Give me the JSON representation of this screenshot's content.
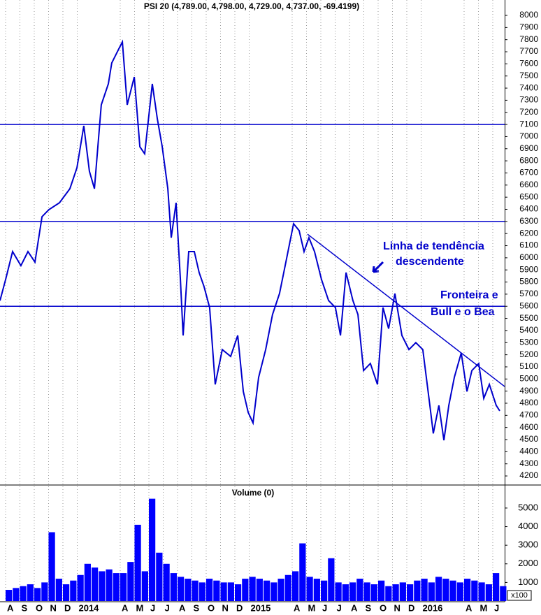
{
  "chart_data": [
    {
      "type": "line",
      "title": "PSI 20 (4,789.00, 4,798.00, 4,729.00, 4,737.00, -69.4199)",
      "color": "#0000cc",
      "line_color": "#0000cc",
      "x": [
        -0.39,
        0,
        0.49,
        1.07,
        1.56,
        2.05,
        2.54,
        3.02,
        3.76,
        4.49,
        4.98,
        5.46,
        5.85,
        6.2,
        6.68,
        7.17,
        7.41,
        7.9,
        8.15,
        8.49,
        8.98,
        9.37,
        9.71,
        10.24,
        10.59,
        10.93,
        11.32,
        11.56,
        11.9,
        12.2,
        12.39,
        12.78,
        13.17,
        13.51,
        13.85,
        14.24,
        14.63,
        15.12,
        15.71,
        16.2,
        16.59,
        16.93,
        17.27,
        17.66,
        18.15,
        18.63,
        19.12,
        19.61,
        20.1,
        20.49,
        20.83,
        21.17,
        21.56,
        22.05,
        22.54,
        23.02,
        23.37,
        23.76,
        24.24,
        24.59,
        24.98,
        25.46,
        25.95,
        26.34,
        26.73,
        27.17,
        27.66,
        28.15,
        28.63,
        29.12,
        29.61,
        29.85,
        30.24,
        30.59,
        30.93,
        31.32,
        31.8,
        32.2,
        32.54,
        33.02,
        33.37,
        33.76,
        34.24,
        34.49
      ],
      "values": [
        5647,
        5820,
        6051,
        5935,
        6051,
        5964,
        6339,
        6397,
        6454,
        6570,
        6743,
        7089,
        6714,
        6570,
        7262,
        7435,
        7608,
        7723,
        7781,
        7262,
        7492,
        6916,
        6858,
        7435,
        7146,
        6916,
        6570,
        6166,
        6454,
        5820,
        5359,
        6051,
        6051,
        5878,
        5762,
        5589,
        4955,
        5243,
        5186,
        5359,
        4897,
        4724,
        4638,
        5013,
        5243,
        5532,
        5705,
        5993,
        6281,
        6224,
        6051,
        6166,
        6051,
        5820,
        5647,
        5589,
        5359,
        5878,
        5647,
        5532,
        5070,
        5128,
        4955,
        5589,
        5416,
        5705,
        5359,
        5243,
        5300,
        5243,
        4782,
        4551,
        4782,
        4494,
        4782,
        5013,
        5215,
        4897,
        5070,
        5128,
        4840,
        4955,
        4782,
        4737
      ],
      "xlim": [
        -0.39,
        34.83
      ],
      "ylim": [
        4131,
        8127
      ],
      "yticks": [
        4200,
        4300,
        4400,
        4500,
        4600,
        4700,
        4800,
        4900,
        5000,
        5100,
        5200,
        5300,
        5400,
        5500,
        5600,
        5700,
        5800,
        5900,
        6000,
        6100,
        6200,
        6300,
        6400,
        6500,
        6600,
        6700,
        6800,
        6900,
        7000,
        7100,
        7200,
        7300,
        7400,
        7500,
        7600,
        7700,
        7800,
        7900,
        8000
      ],
      "hlines": [
        7100,
        6300,
        5600
      ],
      "trendline": {
        "x": [
          21.07,
          34.83
        ],
        "y": [
          6195,
          4938
        ]
      },
      "annotations": [
        "Linha de tendência",
        "descendente",
        "Fronteira e",
        "Bull e o Bea"
      ]
    },
    {
      "type": "bar",
      "title": "Volume (0)",
      "color": "#0000ff",
      "y_unit_label": "x100",
      "x": [
        0,
        0.5,
        1,
        1.5,
        2,
        2.5,
        3,
        3.5,
        4,
        4.5,
        5,
        5.5,
        6,
        6.5,
        7,
        7.5,
        8,
        8.5,
        9,
        9.5,
        10,
        10.5,
        11,
        11.5,
        12,
        12.5,
        13,
        13.5,
        14,
        14.5,
        15,
        15.5,
        16,
        16.5,
        17,
        17.5,
        18,
        18.5,
        19,
        19.5,
        20,
        20.5,
        21,
        21.5,
        22,
        22.5,
        23,
        23.5,
        24,
        24.5,
        25,
        25.5,
        26,
        26.5,
        27,
        27.5,
        28,
        28.5,
        29,
        29.5,
        30,
        30.5,
        31,
        31.5,
        32,
        32.5,
        33,
        33.5,
        34,
        34.5
      ],
      "values": [
        600,
        700,
        800,
        900,
        700,
        1000,
        3700,
        1200,
        900,
        1100,
        1400,
        2000,
        1800,
        1600,
        1700,
        1500,
        1500,
        2100,
        4100,
        1600,
        5500,
        2600,
        2000,
        1500,
        1300,
        1200,
        1100,
        1000,
        1200,
        1100,
        1000,
        1000,
        900,
        1200,
        1300,
        1200,
        1100,
        1000,
        1200,
        1400,
        1600,
        3100,
        1300,
        1200,
        1100,
        2300,
        1000,
        900,
        1000,
        1200,
        1000,
        900,
        1100,
        800,
        900,
        1000,
        900,
        1100,
        1200,
        1000,
        1300,
        1200,
        1100,
        1000,
        1200,
        1100,
        1000,
        900,
        1500,
        800
      ],
      "xlim": [
        -0.39,
        34.83
      ],
      "ylim": [
        0,
        6200
      ],
      "yticks": [
        1000,
        2000,
        3000,
        4000,
        5000
      ],
      "xticks": [
        {
          "value": 0,
          "label": "A"
        },
        {
          "value": 1,
          "label": "S"
        },
        {
          "value": 2,
          "label": "O"
        },
        {
          "value": 3,
          "label": "N"
        },
        {
          "value": 4,
          "label": "D"
        },
        {
          "value": 5,
          "label": "2014"
        },
        {
          "value": 8,
          "label": "A"
        },
        {
          "value": 9,
          "label": "M"
        },
        {
          "value": 10,
          "label": "J"
        },
        {
          "value": 11,
          "label": "J"
        },
        {
          "value": 12,
          "label": "A"
        },
        {
          "value": 13,
          "label": "S"
        },
        {
          "value": 14,
          "label": "O"
        },
        {
          "value": 15,
          "label": "N"
        },
        {
          "value": 16,
          "label": "D"
        },
        {
          "value": 17,
          "label": "2015"
        },
        {
          "value": 20,
          "label": "A"
        },
        {
          "value": 21,
          "label": "M"
        },
        {
          "value": 22,
          "label": "J"
        },
        {
          "value": 23,
          "label": "J"
        },
        {
          "value": 24,
          "label": "A"
        },
        {
          "value": 25,
          "label": "S"
        },
        {
          "value": 26,
          "label": "O"
        },
        {
          "value": 27,
          "label": "N"
        },
        {
          "value": 28,
          "label": "D"
        },
        {
          "value": 29,
          "label": "2016"
        },
        {
          "value": 32,
          "label": "A"
        },
        {
          "value": 33,
          "label": "M"
        },
        {
          "value": 34,
          "label": "J"
        }
      ]
    }
  ]
}
